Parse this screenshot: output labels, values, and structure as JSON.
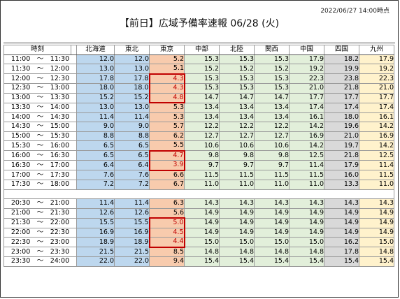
{
  "header": {
    "timestamp": "2022/06/27 14:00時点",
    "title": "【前日】広域予備率速報 06/28 (火)"
  },
  "table": {
    "time_header": "時刻",
    "regions": [
      "北海道",
      "東北",
      "東京",
      "中部",
      "北陸",
      "関西",
      "中国",
      "四国",
      "九州"
    ],
    "colors": {
      "hokkaido": "#bdd7ee",
      "tokyo": "#f8cbad",
      "central": "#e2efda",
      "shikoku": "#d9d9d9",
      "kyushu": "#fff2cc",
      "highlight_border": "#c00000"
    },
    "rows_am": [
      {
        "time": "11:00　～　11:30",
        "v": [
          "12.0",
          "12.0",
          "5.2",
          "15.3",
          "15.3",
          "15.3",
          "17.9",
          "18.2",
          "17.9"
        ],
        "hl": false
      },
      {
        "time": "11:30　～　12:00",
        "v": [
          "13.0",
          "13.0",
          "5.1",
          "15.2",
          "15.2",
          "15.2",
          "19.2",
          "19.9",
          "19.2"
        ],
        "hl": false
      },
      {
        "time": "12:00　～　12:30",
        "v": [
          "17.8",
          "17.8",
          "4.3",
          "15.3",
          "15.3",
          "15.3",
          "22.3",
          "23.8",
          "22.3"
        ],
        "hl": true
      },
      {
        "time": "12:30　～　13:00",
        "v": [
          "18.0",
          "18.0",
          "4.3",
          "15.3",
          "15.3",
          "15.3",
          "21.0",
          "21.8",
          "21.0"
        ],
        "hl": true
      },
      {
        "time": "13:00　～　13:30",
        "v": [
          "15.2",
          "15.2",
          "4.8",
          "14.7",
          "14.7",
          "14.7",
          "17.7",
          "17.7",
          "17.7"
        ],
        "hl": true
      },
      {
        "time": "13:30　～　14:00",
        "v": [
          "13.0",
          "13.0",
          "5.3",
          "13.4",
          "13.4",
          "13.4",
          "17.4",
          "17.4",
          "17.4"
        ],
        "hl": false
      },
      {
        "time": "14:00　～　14:30",
        "v": [
          "11.4",
          "11.4",
          "5.3",
          "13.4",
          "13.4",
          "13.4",
          "16.1",
          "18.0",
          "16.1"
        ],
        "hl": false
      },
      {
        "time": "14:30　～　15:00",
        "v": [
          "9.0",
          "9.0",
          "5.7",
          "12.2",
          "12.2",
          "12.2",
          "14.2",
          "19.6",
          "14.2"
        ],
        "hl": false
      },
      {
        "time": "15:00　～　15:30",
        "v": [
          "8.8",
          "8.8",
          "6.2",
          "12.7",
          "12.7",
          "12.7",
          "16.9",
          "21.0",
          "16.9"
        ],
        "hl": false
      },
      {
        "time": "15:30　～　16:00",
        "v": [
          "6.5",
          "6.5",
          "5.5",
          "10.6",
          "10.6",
          "10.6",
          "14.2",
          "19.7",
          "14.2"
        ],
        "hl": false
      },
      {
        "time": "16:00　～　16:30",
        "v": [
          "6.5",
          "6.5",
          "4.7",
          "9.8",
          "9.8",
          "9.8",
          "12.5",
          "21.8",
          "12.5"
        ],
        "hl": true
      },
      {
        "time": "16:30　～　17:00",
        "v": [
          "6.4",
          "6.4",
          "3.9",
          "9.7",
          "9.7",
          "9.7",
          "11.4",
          "17.9",
          "11.4"
        ],
        "hl": true
      },
      {
        "time": "17:00　～　17:30",
        "v": [
          "7.6",
          "7.6",
          "6.6",
          "11.5",
          "11.5",
          "11.5",
          "11.5",
          "16.0",
          "11.5"
        ],
        "hl": false
      },
      {
        "time": "17:30　～　18:00",
        "v": [
          "7.2",
          "7.2",
          "6.7",
          "11.0",
          "11.0",
          "11.0",
          "11.0",
          "13.3",
          "11.0"
        ],
        "hl": false
      }
    ],
    "rows_pm": [
      {
        "time": "20:30　～　21:00",
        "v": [
          "11.4",
          "11.4",
          "6.3",
          "14.3",
          "14.3",
          "14.3",
          "14.3",
          "14.3",
          "14.3"
        ],
        "hl": false
      },
      {
        "time": "21:00　～　21:30",
        "v": [
          "12.6",
          "12.6",
          "5.6",
          "14.9",
          "14.9",
          "14.9",
          "14.9",
          "14.9",
          "14.9"
        ],
        "hl": false
      },
      {
        "time": "21:30　～　22:00",
        "v": [
          "15.5",
          "15.5",
          "5.0",
          "14.9",
          "14.9",
          "14.9",
          "14.9",
          "14.9",
          "14.9"
        ],
        "hl": true
      },
      {
        "time": "22:00　～　22:30",
        "v": [
          "16.9",
          "16.9",
          "4.5",
          "14.9",
          "14.9",
          "14.9",
          "14.9",
          "14.9",
          "14.9"
        ],
        "hl": true
      },
      {
        "time": "22:30　～　23:00",
        "v": [
          "18.9",
          "18.9",
          "4.4",
          "15.0",
          "15.0",
          "15.0",
          "15.0",
          "16.2",
          "15.0"
        ],
        "hl": true
      },
      {
        "time": "23:00　～　23:30",
        "v": [
          "21.5",
          "21.5",
          "8.5",
          "14.8",
          "14.8",
          "14.8",
          "14.8",
          "17.8",
          "14.8"
        ],
        "hl": false
      },
      {
        "time": "23:30　～　24:00",
        "v": [
          "22.0",
          "22.0",
          "9.4",
          "15.4",
          "15.4",
          "15.4",
          "15.4",
          "15.4",
          "15.4"
        ],
        "hl": false
      }
    ]
  }
}
